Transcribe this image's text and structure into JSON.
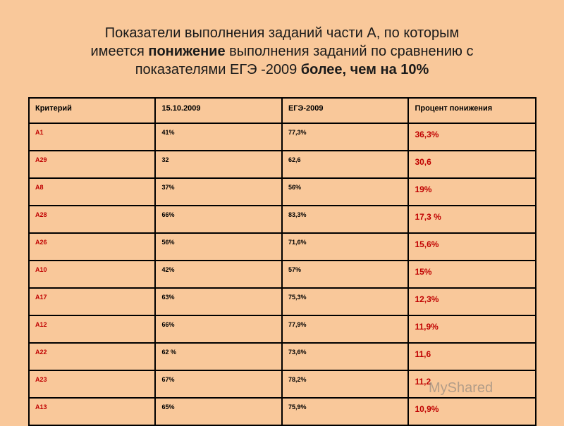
{
  "title": {
    "line1": "Показатели выполнения заданий части А, по которым",
    "line2_pre": "имеется ",
    "line2_bold": "понижение",
    "line2_post": " выполнения заданий по сравнению с",
    "line3_pre": "показателями ЕГЭ -2009 ",
    "line3_bold": "более, чем на  10%"
  },
  "table": {
    "headers": [
      "Критерий",
      "15.10.2009",
      "ЕГЭ-2009",
      "Процент понижения"
    ],
    "rows": [
      [
        "А1",
        "41%",
        "77,3%",
        "36,3%"
      ],
      [
        "А29",
        "32",
        "62,6",
        "30,6"
      ],
      [
        "А8",
        "37%",
        "56%",
        "19%"
      ],
      [
        "А28",
        "66%",
        "83,3%",
        "17,3 %"
      ],
      [
        "А26",
        "56%",
        "71,6%",
        "15,6%"
      ],
      [
        "А10",
        "42%",
        "57%",
        "15%"
      ],
      [
        "А17",
        "63%",
        "75,3%",
        "12,3%"
      ],
      [
        "А12",
        "66%",
        "77,9%",
        "11,9%"
      ],
      [
        "А22",
        "62 %",
        "73,6%",
        "11,6"
      ],
      [
        "А23",
        "67%",
        "78,2%",
        "11,2"
      ],
      [
        "А13",
        "65%",
        "75,9%",
        "10,9%"
      ]
    ]
  },
  "watermark": "MyShared"
}
